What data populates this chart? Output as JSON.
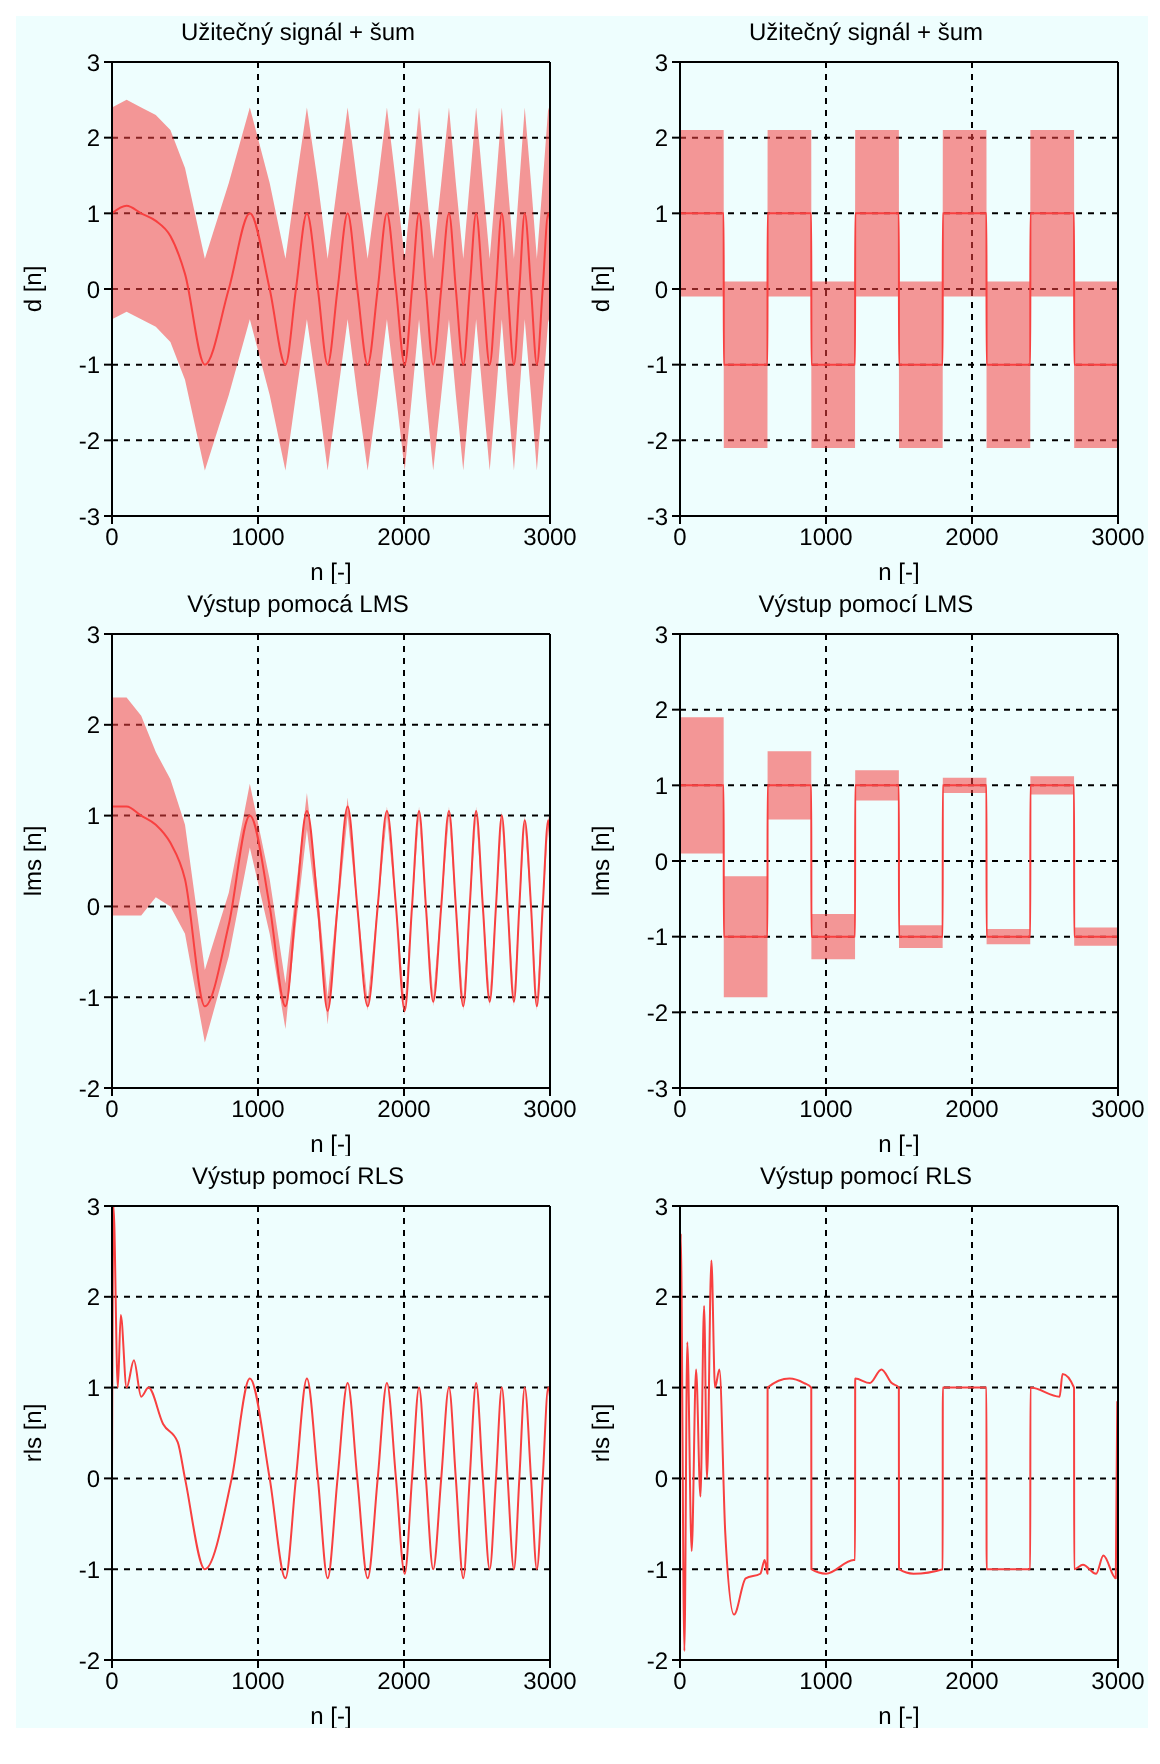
{
  "chart_data": [
    {
      "type": "line",
      "title": "Užitečný signál + šum",
      "xlabel": "n [-]",
      "ylabel": "d [n]",
      "xlim": [
        0,
        3000
      ],
      "xticks": [
        0,
        1000,
        2000,
        3000
      ],
      "ylim": [
        -3,
        3
      ],
      "yticks": [
        -3,
        -2,
        -1,
        0,
        1,
        2,
        3
      ],
      "grid": true,
      "series": [
        {
          "color": "#f84040",
          "x": [
            0,
            100,
            200,
            300,
            400,
            500,
            636,
            800,
            944,
            1080,
            1188,
            1260,
            1335,
            1410,
            1477,
            1545,
            1614,
            1680,
            1751,
            1820,
            1883,
            1945,
            2005,
            2055,
            2103,
            2150,
            2200,
            2255,
            2308,
            2355,
            2406,
            2450,
            2494,
            2540,
            2587,
            2630,
            2670,
            2710,
            2753,
            2790,
            2827,
            2870,
            2910,
            2950,
            2988,
            3000
          ],
          "values": [
            1.0,
            1.1,
            1.0,
            0.9,
            0.7,
            0.2,
            -1.0,
            0,
            1.0,
            0,
            -1.0,
            0,
            1.0,
            0,
            -1.0,
            0,
            1.0,
            0,
            -1.0,
            0,
            1.0,
            0,
            -1.0,
            0,
            1.0,
            0,
            -1.0,
            0,
            1.0,
            0,
            -1.0,
            0,
            1.0,
            0,
            -1.0,
            0,
            1.0,
            0,
            -1.0,
            0,
            1.0,
            0,
            -1.0,
            0,
            1.0,
            0.9
          ],
          "upper": [
            2.4,
            2.5,
            2.4,
            2.3,
            2.1,
            1.6,
            0.4,
            1.4,
            2.4,
            1.4,
            0.4,
            1.4,
            2.4,
            1.4,
            0.4,
            1.4,
            2.4,
            1.4,
            0.4,
            1.4,
            2.4,
            1.4,
            0.4,
            1.4,
            2.4,
            1.4,
            0.4,
            1.4,
            2.4,
            1.4,
            0.4,
            1.4,
            2.4,
            1.4,
            0.4,
            1.4,
            2.4,
            1.4,
            0.4,
            1.4,
            2.4,
            1.4,
            0.4,
            1.4,
            2.4,
            2.3
          ],
          "lower": [
            -0.4,
            -0.3,
            -0.4,
            -0.5,
            -0.7,
            -1.2,
            -2.4,
            -1.4,
            -0.4,
            -1.4,
            -2.4,
            -1.4,
            -0.4,
            -1.4,
            -2.4,
            -1.4,
            -0.4,
            -1.4,
            -2.4,
            -1.4,
            -0.4,
            -1.4,
            -2.4,
            -1.4,
            -0.4,
            -1.4,
            -2.4,
            -1.4,
            -0.4,
            -1.4,
            -2.4,
            -1.4,
            -0.4,
            -1.4,
            -2.4,
            -1.4,
            -0.4,
            -1.4,
            -2.4,
            -1.4,
            -0.4,
            -1.4,
            -2.4,
            -1.4,
            -0.4,
            -0.5
          ]
        }
      ]
    },
    {
      "type": "line",
      "title": "Užitečný signál + šum",
      "xlabel": "n [-]",
      "ylabel": "d [n]",
      "xlim": [
        0,
        3000
      ],
      "xticks": [
        0,
        1000,
        2000,
        3000
      ],
      "ylim": [
        -3,
        3
      ],
      "yticks": [
        -3,
        -2,
        -1,
        0,
        1,
        2,
        3
      ],
      "grid": true,
      "series": [
        {
          "color": "#f84040",
          "x": [
            0,
            299,
            300,
            599,
            600,
            899,
            900,
            1199,
            1200,
            1499,
            1500,
            1799,
            1800,
            2099,
            2100,
            2399,
            2400,
            2699,
            2700,
            3000
          ],
          "values": [
            1,
            1,
            -1,
            -1,
            1,
            1,
            -1,
            -1,
            1,
            1,
            -1,
            -1,
            1,
            1,
            -1,
            -1,
            1,
            1,
            -1,
            -1
          ],
          "upper": [
            2.1,
            2.1,
            0.1,
            0.1,
            2.1,
            2.1,
            0.1,
            0.1,
            2.1,
            2.1,
            0.1,
            0.1,
            2.1,
            2.1,
            0.1,
            0.1,
            2.1,
            2.1,
            0.1,
            0.1
          ],
          "lower": [
            -0.1,
            -0.1,
            -2.1,
            -2.1,
            -0.1,
            -0.1,
            -2.1,
            -2.1,
            -0.1,
            -0.1,
            -2.1,
            -2.1,
            -0.1,
            -0.1,
            -2.1,
            -2.1,
            -0.1,
            -0.1,
            -2.1,
            -2.1
          ]
        }
      ]
    },
    {
      "type": "line",
      "title": "Výstup pomocá LMS",
      "xlabel": "n [-]",
      "ylabel": "lms [n]",
      "xlim": [
        0,
        3000
      ],
      "xticks": [
        0,
        1000,
        2000,
        3000
      ],
      "ylim": [
        -2,
        3
      ],
      "yticks": [
        -2,
        -1,
        0,
        1,
        2,
        3
      ],
      "grid": true,
      "series": [
        {
          "color": "#f84040",
          "x": [
            0,
            100,
            200,
            300,
            400,
            500,
            636,
            800,
            944,
            1080,
            1188,
            1260,
            1335,
            1410,
            1477,
            1545,
            1614,
            1680,
            1751,
            1820,
            1883,
            1945,
            2005,
            2055,
            2103,
            2150,
            2200,
            2255,
            2308,
            2355,
            2406,
            2450,
            2494,
            2540,
            2587,
            2630,
            2670,
            2710,
            2753,
            2790,
            2827,
            2870,
            2910,
            2950,
            2988,
            3000
          ],
          "values": [
            1.1,
            1.1,
            1.0,
            0.9,
            0.7,
            0.3,
            -1.1,
            -0.2,
            1.0,
            0,
            -1.1,
            0,
            1.05,
            0,
            -1.15,
            0,
            1.1,
            0,
            -1.1,
            0,
            1.05,
            0,
            -1.15,
            0,
            1.05,
            0,
            -1.05,
            0,
            1.05,
            0,
            -1.1,
            0,
            1.05,
            0,
            -1.05,
            0,
            1.0,
            0,
            -1.05,
            0,
            0.95,
            0,
            -1.1,
            0,
            0.95,
            0.75
          ],
          "upper": [
            2.3,
            2.3,
            2.1,
            1.7,
            1.4,
            0.9,
            -0.7,
            0.15,
            1.35,
            0.3,
            -0.85,
            0.2,
            1.25,
            0.15,
            -1.0,
            0.1,
            1.2,
            0.05,
            -1.05,
            0.05,
            1.1,
            0.05,
            -1.1,
            0.05,
            1.1,
            0.05,
            -1.0,
            0.05,
            1.1,
            0.05,
            -1.05,
            0.05,
            1.1,
            0.05,
            -1.0,
            0.05,
            1.05,
            0.05,
            -1.0,
            0.05,
            1.0,
            0.05,
            -1.05,
            0.05,
            1.0,
            0.8
          ],
          "lower": [
            -0.1,
            -0.1,
            -0.1,
            0.1,
            0,
            -0.3,
            -1.5,
            -0.55,
            0.65,
            -0.3,
            -1.35,
            -0.2,
            0.85,
            -0.15,
            -1.3,
            -0.1,
            1.0,
            -0.05,
            -1.15,
            -0.05,
            1.0,
            -0.05,
            -1.2,
            -0.05,
            1.0,
            -0.05,
            -1.1,
            -0.05,
            1.0,
            -0.05,
            -1.15,
            -0.05,
            1.0,
            -0.05,
            -1.1,
            -0.05,
            0.95,
            -0.05,
            -1.1,
            -0.05,
            0.9,
            -0.05,
            -1.15,
            -0.05,
            0.9,
            0.7
          ]
        }
      ]
    },
    {
      "type": "line",
      "title": "Výstup pomocí LMS",
      "xlabel": "n [-]",
      "ylabel": "lms [n]",
      "xlim": [
        0,
        3000
      ],
      "xticks": [
        0,
        1000,
        2000,
        3000
      ],
      "ylim": [
        -3,
        3
      ],
      "yticks": [
        -3,
        -2,
        -1,
        0,
        1,
        2,
        3
      ],
      "grid": true,
      "series": [
        {
          "color": "#f84040",
          "x": [
            0,
            299,
            300,
            599,
            600,
            899,
            900,
            1199,
            1200,
            1499,
            1500,
            1799,
            1800,
            2099,
            2100,
            2399,
            2400,
            2699,
            2700,
            3000
          ],
          "values": [
            1,
            1,
            -1,
            -1,
            1,
            1,
            -1,
            -1,
            1,
            1,
            -1,
            -1,
            1,
            1,
            -1,
            -1,
            1,
            1,
            -1,
            -1
          ],
          "upper": [
            1.9,
            1.9,
            -0.2,
            -0.2,
            1.45,
            1.45,
            -0.7,
            -0.7,
            1.2,
            1.2,
            -0.85,
            -0.85,
            1.1,
            1.1,
            -0.9,
            -0.9,
            1.12,
            1.12,
            -0.88,
            -0.88
          ],
          "lower": [
            0.1,
            0.1,
            -1.8,
            -1.8,
            0.55,
            0.55,
            -1.3,
            -1.3,
            0.8,
            0.8,
            -1.15,
            -1.15,
            0.9,
            0.9,
            -1.1,
            -1.1,
            0.88,
            0.88,
            -1.12,
            -1.12
          ]
        }
      ]
    },
    {
      "type": "line",
      "title": "Výstup pomocí RLS",
      "xlabel": "n [-]",
      "ylabel": "rls [n]",
      "xlim": [
        0,
        3000
      ],
      "xticks": [
        0,
        1000,
        2000,
        3000
      ],
      "ylim": [
        -2,
        3
      ],
      "yticks": [
        -2,
        -1,
        0,
        1,
        2,
        3
      ],
      "grid": true,
      "series": [
        {
          "color": "#f84040",
          "x": [
            0,
            10,
            40,
            60,
            100,
            150,
            200,
            250,
            350,
            450,
            500,
            636,
            820,
            944,
            1080,
            1188,
            1260,
            1335,
            1410,
            1477,
            1545,
            1614,
            1680,
            1751,
            1820,
            1883,
            1945,
            2005,
            2055,
            2103,
            2150,
            2200,
            2255,
            2308,
            2355,
            2406,
            2450,
            2494,
            2540,
            2587,
            2630,
            2670,
            2710,
            2753,
            2790,
            2827,
            2870,
            2910,
            2950,
            2988,
            3000
          ],
          "values": [
            0,
            3,
            1.0,
            1.8,
            1.0,
            1.3,
            0.9,
            1.0,
            0.6,
            0.4,
            0,
            -1.0,
            0,
            1.1,
            0,
            -1.1,
            0,
            1.1,
            0,
            -1.1,
            0,
            1.05,
            0,
            -1.1,
            0,
            1.05,
            0,
            -1.05,
            0,
            1.0,
            0,
            -1.0,
            0,
            1.0,
            0,
            -1.1,
            0,
            1.05,
            0,
            -1.0,
            0,
            1.0,
            0,
            -1.0,
            0,
            1.0,
            0,
            -1.0,
            0,
            1.0,
            0.9
          ]
        }
      ]
    },
    {
      "type": "line",
      "title": "Výstup pomocí RLS",
      "xlabel": "n [-]",
      "ylabel": "rls [n]",
      "xlim": [
        0,
        3000
      ],
      "xticks": [
        0,
        1000,
        2000,
        3000
      ],
      "ylim": [
        -2,
        3
      ],
      "yticks": [
        -2,
        -1,
        0,
        1,
        2,
        3
      ],
      "grid": true,
      "series": [
        {
          "color": "#f84040",
          "x": [
            0,
            5,
            30,
            50,
            80,
            110,
            140,
            165,
            185,
            215,
            240,
            270,
            310,
            370,
            450,
            550,
            580,
            599,
            600,
            750,
            850,
            899,
            900,
            1000,
            1190,
            1199,
            1200,
            1300,
            1380,
            1450,
            1499,
            1500,
            1600,
            1799,
            1800,
            2099,
            2100,
            2399,
            2400,
            2600,
            2620,
            2699,
            2700,
            2760,
            2850,
            2900,
            2985,
            2995
          ],
          "values": [
            0,
            2.7,
            -1.9,
            1.5,
            -0.8,
            1.2,
            -0.2,
            1.9,
            0,
            2.4,
            1.0,
            1.2,
            -0.6,
            -1.5,
            -1.1,
            -1.05,
            -0.9,
            -1.05,
            1.0,
            1.1,
            1.05,
            1.0,
            -1.0,
            -1.05,
            -0.9,
            -0.9,
            1.1,
            1.05,
            1.2,
            1.05,
            1.0,
            -1.0,
            -1.05,
            -1.0,
            1.0,
            1.0,
            -1.0,
            -1.0,
            1.0,
            0.9,
            1.15,
            1.0,
            -1.0,
            -0.95,
            -1.05,
            -0.85,
            -1.1,
            0.85
          ]
        }
      ]
    }
  ]
}
